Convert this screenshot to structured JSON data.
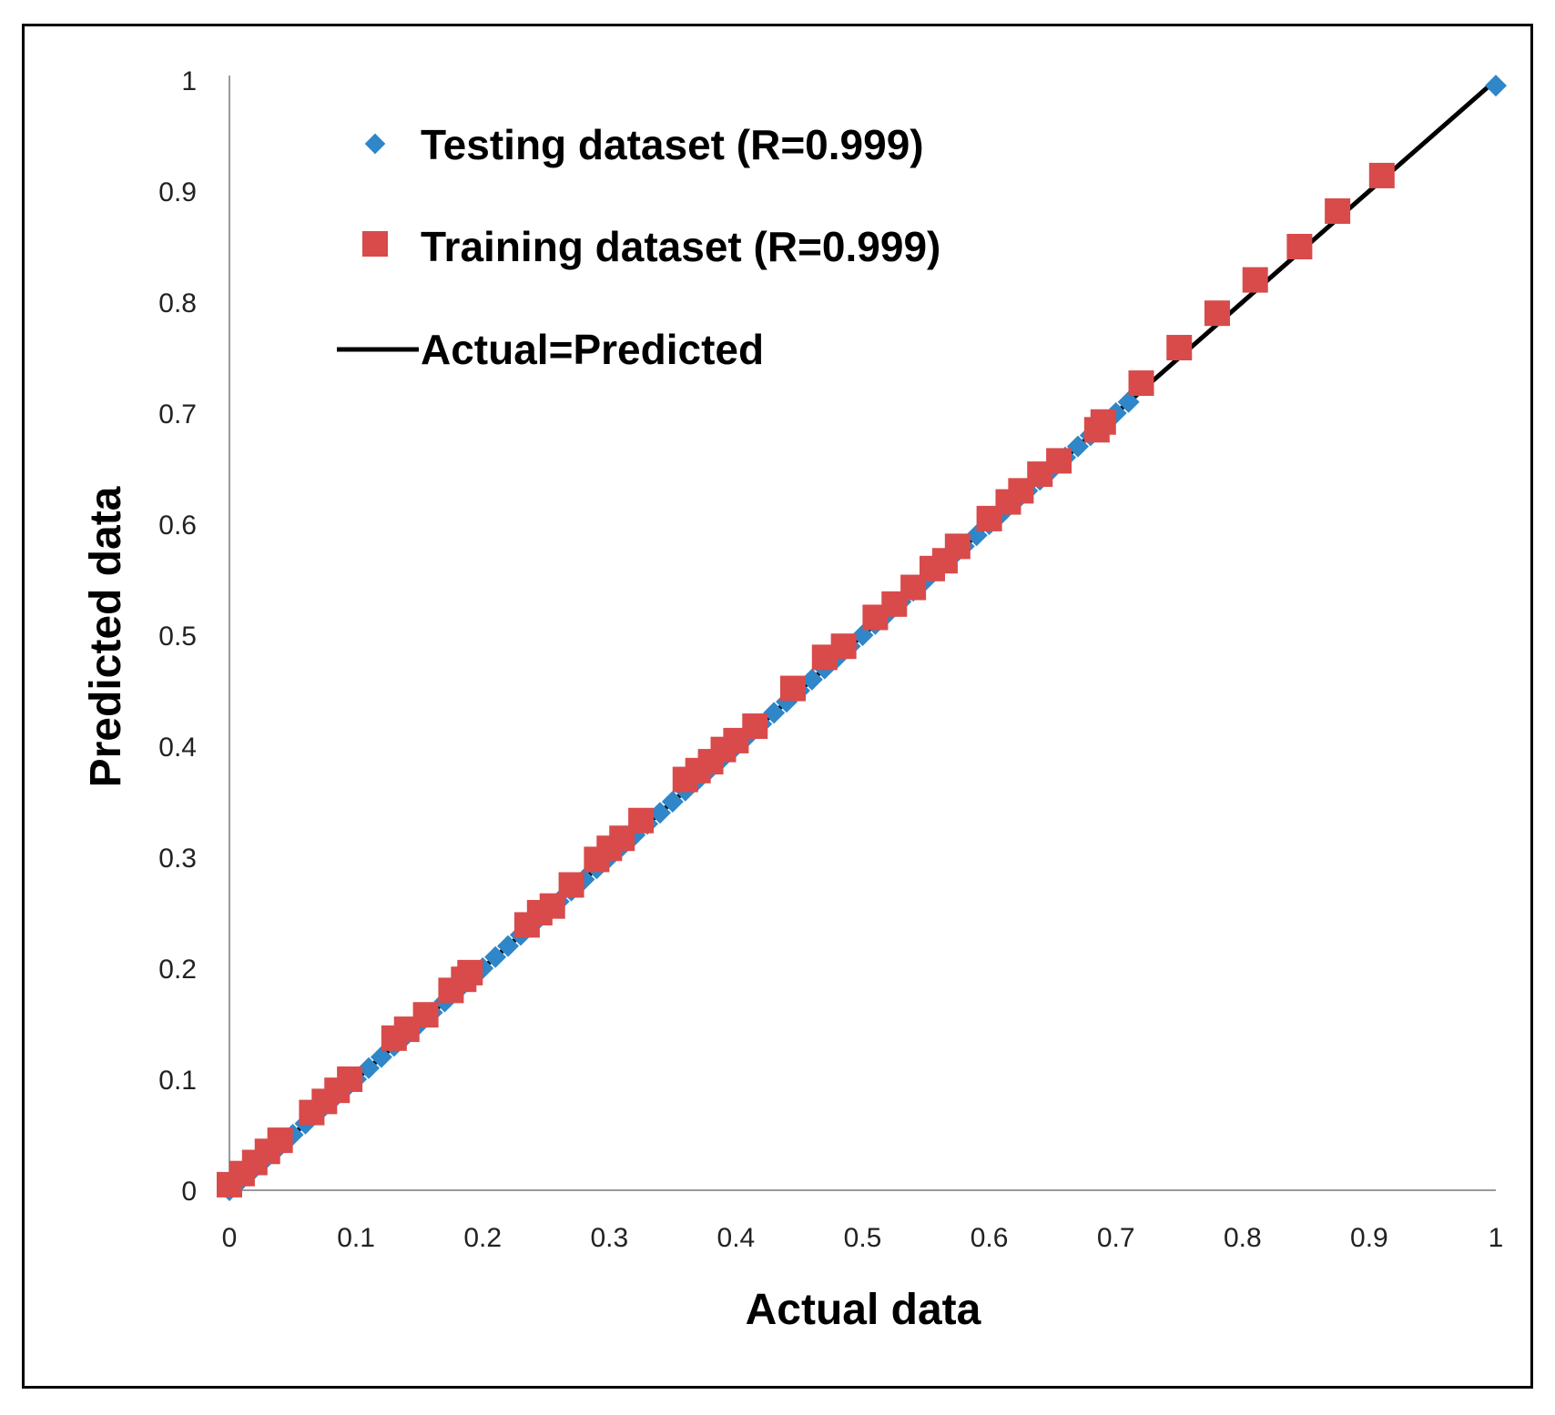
{
  "chart_data": {
    "type": "scatter",
    "xlabel": "Actual data",
    "ylabel": "Predicted data",
    "xlim": [
      0,
      1
    ],
    "ylim": [
      0,
      1
    ],
    "x_ticks": [
      "0",
      "0.1",
      "0.2",
      "0.3",
      "0.4",
      "0.5",
      "0.6",
      "0.7",
      "0.8",
      "0.9",
      "1"
    ],
    "y_ticks": [
      "0",
      "0.1",
      "0.2",
      "0.3",
      "0.4",
      "0.5",
      "0.6",
      "0.7",
      "0.8",
      "0.9",
      "1"
    ],
    "grid": false,
    "legend_position": "top-left",
    "colors": {
      "testing": "#2f86c8",
      "training": "#d94a4a",
      "line": "#000000"
    },
    "series": [
      {
        "name": "Testing dataset (R=0.999)",
        "marker": "diamond",
        "x": [
          0.0,
          0.01,
          0.02,
          0.03,
          0.04,
          0.05,
          0.06,
          0.07,
          0.08,
          0.09,
          0.1,
          0.11,
          0.12,
          0.13,
          0.14,
          0.15,
          0.16,
          0.17,
          0.18,
          0.19,
          0.2,
          0.21,
          0.22,
          0.23,
          0.24,
          0.25,
          0.26,
          0.27,
          0.28,
          0.29,
          0.3,
          0.31,
          0.32,
          0.33,
          0.34,
          0.35,
          0.36,
          0.37,
          0.38,
          0.39,
          0.4,
          0.41,
          0.42,
          0.43,
          0.44,
          0.45,
          0.46,
          0.47,
          0.48,
          0.49,
          0.5,
          0.51,
          0.52,
          0.53,
          0.54,
          0.55,
          0.56,
          0.57,
          0.58,
          0.59,
          0.6,
          0.61,
          0.62,
          0.63,
          0.64,
          0.65,
          0.66,
          0.67,
          0.68,
          0.69,
          0.7,
          0.71,
          1.0
        ],
        "y": [
          0.0,
          0.01,
          0.02,
          0.03,
          0.04,
          0.05,
          0.06,
          0.07,
          0.08,
          0.09,
          0.1,
          0.11,
          0.12,
          0.13,
          0.14,
          0.15,
          0.16,
          0.17,
          0.18,
          0.19,
          0.2,
          0.21,
          0.22,
          0.23,
          0.24,
          0.25,
          0.26,
          0.27,
          0.28,
          0.29,
          0.3,
          0.31,
          0.32,
          0.33,
          0.34,
          0.35,
          0.36,
          0.37,
          0.38,
          0.39,
          0.4,
          0.41,
          0.42,
          0.43,
          0.44,
          0.45,
          0.46,
          0.47,
          0.48,
          0.49,
          0.5,
          0.51,
          0.52,
          0.53,
          0.54,
          0.55,
          0.56,
          0.57,
          0.58,
          0.59,
          0.6,
          0.61,
          0.62,
          0.63,
          0.64,
          0.65,
          0.66,
          0.67,
          0.68,
          0.69,
          0.7,
          0.71,
          0.995
        ]
      },
      {
        "name": "Training dataset (R=0.999)",
        "marker": "square",
        "x": [
          0.0,
          0.01,
          0.02,
          0.03,
          0.04,
          0.065,
          0.075,
          0.085,
          0.095,
          0.13,
          0.14,
          0.155,
          0.175,
          0.185,
          0.19,
          0.235,
          0.245,
          0.255,
          0.27,
          0.29,
          0.3,
          0.31,
          0.325,
          0.36,
          0.37,
          0.38,
          0.39,
          0.4,
          0.415,
          0.445,
          0.47,
          0.485,
          0.51,
          0.525,
          0.54,
          0.555,
          0.565,
          0.575,
          0.6,
          0.615,
          0.625,
          0.64,
          0.655,
          0.685,
          0.69,
          0.72,
          0.75,
          0.78,
          0.81,
          0.845,
          0.875,
          0.91
        ],
        "y": [
          0.005,
          0.015,
          0.025,
          0.035,
          0.045,
          0.07,
          0.08,
          0.09,
          0.1,
          0.137,
          0.145,
          0.158,
          0.18,
          0.19,
          0.196,
          0.239,
          0.25,
          0.256,
          0.275,
          0.298,
          0.308,
          0.317,
          0.333,
          0.37,
          0.378,
          0.386,
          0.397,
          0.405,
          0.418,
          0.452,
          0.48,
          0.49,
          0.516,
          0.528,
          0.543,
          0.56,
          0.567,
          0.58,
          0.605,
          0.62,
          0.63,
          0.645,
          0.657,
          0.685,
          0.692,
          0.727,
          0.759,
          0.79,
          0.82,
          0.85,
          0.882,
          0.914
        ]
      },
      {
        "name": "Actual=Predicted",
        "marker": "line",
        "x": [
          0,
          1
        ],
        "y": [
          0,
          1
        ]
      }
    ]
  }
}
